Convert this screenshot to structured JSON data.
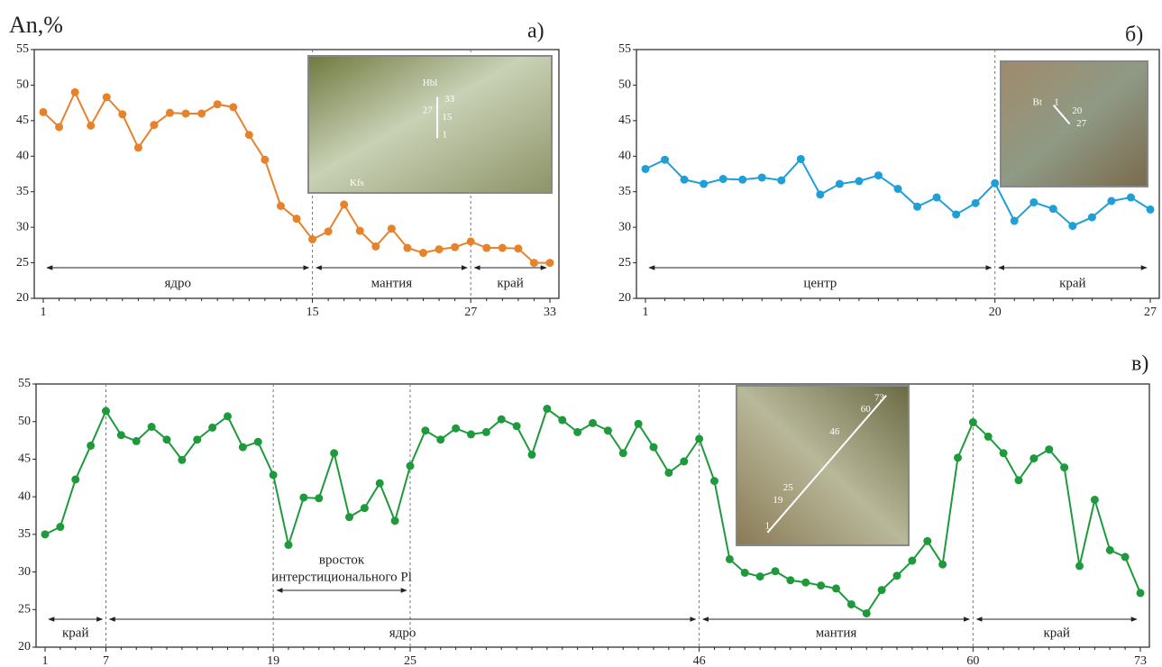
{
  "chart_data": [
    {
      "type": "line",
      "y_label": "An,%",
      "panel_label": "а)",
      "color": "#e8822a",
      "categories": [
        "1",
        null,
        null,
        null,
        null,
        null,
        null,
        null,
        null,
        null,
        null,
        null,
        null,
        null,
        null,
        null,
        null,
        "15",
        null,
        null,
        null,
        null,
        null,
        null,
        null,
        null,
        null,
        "27",
        null,
        null,
        null,
        null,
        "33"
      ],
      "values": [
        46.2,
        44.1,
        49.0,
        44.3,
        48.3,
        45.9,
        41.2,
        44.4,
        46.1,
        46.0,
        46.0,
        47.3,
        46.9,
        43.0,
        39.5,
        33.0,
        31.2,
        28.3,
        29.4,
        33.2,
        29.5,
        27.3,
        29.8,
        27.1,
        26.4,
        26.9,
        27.2,
        28.0,
        27.1,
        27.1,
        27.0,
        25.0,
        25.0
      ],
      "ylim": [
        20,
        55
      ],
      "yticks": [
        20,
        25,
        30,
        35,
        40,
        45,
        50,
        55
      ],
      "annotations": [
        "ядро",
        "мантия",
        "край"
      ],
      "inset_labels": [
        "Hbl",
        "33",
        "27",
        "15",
        "1",
        "Kfs"
      ]
    },
    {
      "type": "line",
      "panel_label": "б)",
      "color": "#1e9fd8",
      "categories": [
        "1",
        null,
        null,
        null,
        null,
        null,
        null,
        null,
        null,
        null,
        null,
        null,
        null,
        null,
        null,
        null,
        null,
        null,
        "20",
        null,
        null,
        null,
        null,
        null,
        null,
        null,
        "27"
      ],
      "values": [
        38.2,
        39.5,
        36.7,
        36.1,
        36.8,
        36.7,
        37.0,
        36.6,
        39.6,
        34.6,
        36.1,
        36.5,
        37.3,
        35.4,
        32.9,
        34.2,
        31.8,
        33.4,
        36.2,
        30.9,
        33.5,
        32.6,
        30.2,
        31.4,
        33.7,
        34.2,
        32.5
      ],
      "ylim": [
        20,
        55
      ],
      "yticks": [
        20,
        25,
        30,
        35,
        40,
        45,
        50,
        55
      ],
      "annotations": [
        "центр",
        "край"
      ],
      "inset_labels": [
        "Bt",
        "1",
        "20",
        "27"
      ]
    },
    {
      "type": "line",
      "panel_label": "в)",
      "color": "#1e9a3c",
      "categories": [
        "1",
        null,
        null,
        null,
        "7",
        null,
        null,
        null,
        null,
        null,
        null,
        null,
        null,
        null,
        null,
        "19",
        null,
        null,
        null,
        null,
        null,
        null,
        null,
        null,
        "25",
        null,
        null,
        null,
        null,
        null,
        null,
        null,
        null,
        null,
        null,
        null,
        null,
        null,
        null,
        null,
        null,
        null,
        null,
        "46",
        null,
        null,
        null,
        null,
        null,
        null,
        null,
        null,
        null,
        null,
        null,
        null,
        null,
        null,
        null,
        null,
        null,
        "60",
        null,
        null,
        null,
        null,
        null,
        null,
        null,
        null,
        null,
        null,
        "73"
      ],
      "values": [
        35.0,
        36.0,
        42.3,
        46.8,
        51.4,
        48.2,
        47.4,
        49.3,
        47.6,
        44.9,
        47.6,
        49.2,
        50.7,
        46.6,
        47.3,
        42.9,
        33.6,
        39.9,
        39.8,
        45.8,
        37.3,
        38.5,
        41.8,
        36.8,
        44.1,
        48.8,
        47.6,
        49.1,
        48.3,
        48.6,
        50.3,
        49.4,
        45.6,
        51.7,
        50.2,
        48.6,
        49.8,
        48.8,
        45.8,
        49.7,
        46.6,
        43.2,
        44.7,
        47.7,
        42.1,
        31.7,
        29.9,
        29.4,
        30.1,
        28.9,
        28.6,
        28.2,
        27.8,
        25.7,
        24.5,
        27.6,
        29.5,
        31.5,
        34.1,
        31.0,
        45.2,
        49.9,
        48.0,
        45.8,
        42.2,
        45.1,
        46.3,
        43.9,
        30.8,
        39.6,
        32.9,
        32.0,
        27.2
      ],
      "ylim": [
        20,
        55
      ],
      "yticks": [
        20,
        25,
        30,
        35,
        40,
        45,
        50,
        55
      ],
      "annotations": [
        "край",
        "ядро",
        "мантия",
        "край",
        "вросток",
        "интерстиционального Pl"
      ],
      "inset_labels": [
        "73",
        "60",
        "46",
        "25",
        "19",
        "1"
      ]
    }
  ]
}
